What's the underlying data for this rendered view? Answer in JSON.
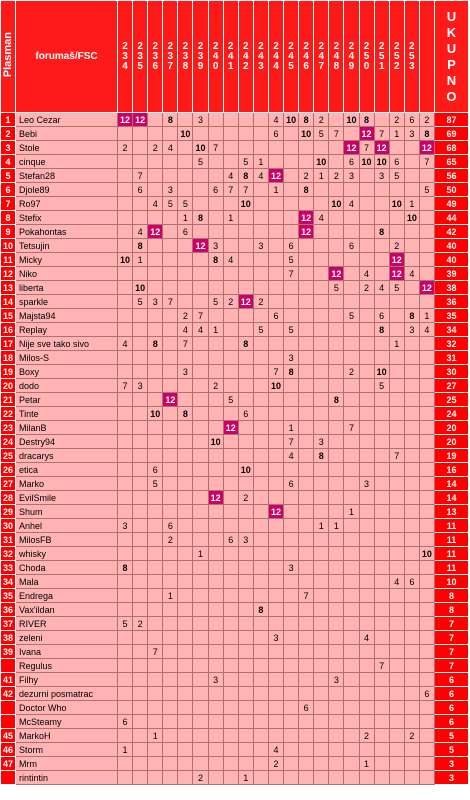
{
  "header": {
    "rank_label": "Plasman",
    "name_label": "forumaš/FSC",
    "episodes": [
      "234",
      "235",
      "236",
      "237",
      "238",
      "239",
      "240",
      "241",
      "242",
      "243",
      "244",
      "245",
      "246",
      "247",
      "248",
      "249",
      "250",
      "251",
      "252",
      "253"
    ],
    "total_label": "UKUPNO"
  },
  "rows": [
    {
      "rank": "1",
      "name": "Leo Cezar",
      "scores": [
        "12",
        "12",
        "",
        "8",
        "",
        "3",
        "",
        "",
        "",
        "",
        "4",
        "10",
        "8",
        "2",
        "",
        "10",
        "8",
        "",
        "2",
        "6"
      ],
      "extra": "2",
      "total": "87"
    },
    {
      "rank": "2",
      "name": "Bebi",
      "scores": [
        "",
        "",
        "",
        "",
        "10",
        "",
        "",
        "",
        "",
        "",
        "6",
        "",
        "10",
        "5",
        "7",
        "",
        "12",
        "7",
        "1",
        "3"
      ],
      "extra": "8",
      "total": "69"
    },
    {
      "rank": "3",
      "name": "Stole",
      "scores": [
        "2",
        "",
        "2",
        "4",
        "",
        "10",
        "7",
        "",
        "",
        "",
        "",
        "",
        "",
        "",
        "",
        "12",
        "7",
        "12",
        "",
        ""
      ],
      "extra": "12",
      "total": "68"
    },
    {
      "rank": "4",
      "name": "cinque",
      "scores": [
        "",
        "",
        "",
        "",
        "",
        "5",
        "",
        "",
        "5",
        "1",
        "",
        "",
        "",
        "10",
        "",
        "6",
        "10",
        "10",
        "6",
        ""
      ],
      "extra": "7",
      "total": "65"
    },
    {
      "rank": "5",
      "name": "Stefan28",
      "scores": [
        "",
        "7",
        "",
        "",
        "",
        "",
        "",
        "4",
        "8",
        "4",
        "12",
        "",
        "2",
        "1",
        "2",
        "3",
        "",
        "3",
        "5",
        ""
      ],
      "extra": "",
      "total": "56"
    },
    {
      "rank": "6",
      "name": "Djole89",
      "scores": [
        "",
        "6",
        "",
        "3",
        "",
        "",
        "6",
        "7",
        "7",
        "",
        "1",
        "",
        "8",
        "",
        "",
        "",
        "",
        "",
        "",
        ""
      ],
      "extra": "5",
      "total": "50"
    },
    {
      "rank": "7",
      "name": "Ro97",
      "scores": [
        "",
        "",
        "4",
        "5",
        "5",
        "",
        "",
        "",
        "10",
        "",
        "",
        "",
        "",
        "",
        "10",
        "4",
        "",
        "",
        "10",
        "1"
      ],
      "extra": "",
      "total": "49"
    },
    {
      "rank": "8",
      "name": "Stefix",
      "scores": [
        "",
        "",
        "",
        "",
        "1",
        "8",
        "",
        "1",
        "",
        "",
        "",
        "",
        "12",
        "4",
        "",
        "",
        "",
        "",
        "",
        "10"
      ],
      "extra": "",
      "total": "44"
    },
    {
      "rank": "9",
      "name": "Pokahontas",
      "scores": [
        "",
        "4",
        "12",
        "",
        "6",
        "",
        "",
        "",
        "",
        "",
        "",
        "",
        "12",
        "",
        "",
        "",
        "",
        "8",
        "",
        ""
      ],
      "extra": "",
      "total": "42"
    },
    {
      "rank": "10",
      "name": "Tetsujin",
      "scores": [
        "",
        "8",
        "",
        "",
        "",
        "12",
        "3",
        "",
        "",
        "3",
        "",
        "6",
        "",
        "",
        "",
        "6",
        "",
        "",
        "2",
        ""
      ],
      "extra": "",
      "total": "40"
    },
    {
      "rank": "11",
      "name": "Micky",
      "scores": [
        "10",
        "1",
        "",
        "",
        "",
        "",
        "8",
        "4",
        "",
        "",
        "",
        "5",
        "",
        "",
        "",
        "",
        "",
        "",
        "12",
        ""
      ],
      "extra": "",
      "total": "40"
    },
    {
      "rank": "12",
      "name": "Niko",
      "scores": [
        "",
        "",
        "",
        "",
        "",
        "",
        "",
        "",
        "",
        "",
        "",
        "7",
        "",
        "",
        "12",
        "",
        "4",
        "",
        "12",
        "4"
      ],
      "extra": "",
      "total": "39"
    },
    {
      "rank": "13",
      "name": "liberta",
      "scores": [
        "",
        "10",
        "",
        "",
        "",
        "",
        "",
        "",
        "",
        "",
        "",
        "",
        "",
        "",
        "5",
        "",
        "2",
        "4",
        "5",
        ""
      ],
      "extra": "12",
      "total": "38"
    },
    {
      "rank": "14",
      "name": "sparkle",
      "scores": [
        "",
        "5",
        "3",
        "7",
        "",
        "",
        "5",
        "2",
        "12",
        "2",
        "",
        "",
        "",
        "",
        "",
        "",
        "",
        "",
        "",
        ""
      ],
      "extra": "",
      "total": "36"
    },
    {
      "rank": "15",
      "name": "Majsta94",
      "scores": [
        "",
        "",
        "",
        "",
        "2",
        "7",
        "",
        "",
        "",
        "",
        "6",
        "",
        "",
        "",
        "",
        "5",
        "",
        "6",
        "",
        "8"
      ],
      "extra": "1",
      "total": "35"
    },
    {
      "rank": "16",
      "name": "Replay",
      "scores": [
        "",
        "",
        "",
        "",
        "4",
        "4",
        "1",
        "",
        "",
        "5",
        "",
        "5",
        "",
        "",
        "",
        "",
        "",
        "8",
        "",
        "3"
      ],
      "extra": "4",
      "total": "34"
    },
    {
      "rank": "17",
      "name": "Nije sve tako sivo",
      "scores": [
        "4",
        "",
        "8",
        "",
        "7",
        "",
        "",
        "",
        "8",
        "",
        "",
        "",
        "",
        "",
        "",
        "",
        "",
        "",
        "1",
        ""
      ],
      "extra": "",
      "total": "32"
    },
    {
      "rank": "18",
      "name": "Milos-S",
      "scores": [
        "",
        "",
        "",
        "",
        "",
        "",
        "",
        "",
        "",
        "",
        "",
        "3",
        "",
        "",
        "",
        "",
        "",
        "",
        "",
        ""
      ],
      "extra": "",
      "total": "31"
    },
    {
      "rank": "19",
      "name": "Boxy",
      "scores": [
        "",
        "",
        "",
        "",
        "3",
        "",
        "",
        "",
        "",
        "",
        "7",
        "8",
        "",
        "",
        "",
        "2",
        "",
        "10",
        "",
        ""
      ],
      "extra": "",
      "total": "30"
    },
    {
      "rank": "20",
      "name": "dodo",
      "scores": [
        "7",
        "3",
        "",
        "",
        "",
        "",
        "2",
        "",
        "",
        "",
        "10",
        "",
        "",
        "",
        "",
        "",
        "",
        "5",
        "",
        ""
      ],
      "extra": "",
      "total": "27"
    },
    {
      "rank": "21",
      "name": "Petar",
      "scores": [
        "",
        "",
        "",
        "12",
        "",
        "",
        "",
        "5",
        "",
        "",
        "",
        "",
        "",
        "",
        "8",
        "",
        "",
        "",
        "",
        ""
      ],
      "extra": "",
      "total": "25"
    },
    {
      "rank": "22",
      "name": "Tinte",
      "scores": [
        "",
        "",
        "10",
        "",
        "8",
        "",
        "",
        "",
        "6",
        "",
        "",
        "",
        "",
        "",
        "",
        "",
        "",
        "",
        "",
        ""
      ],
      "extra": "",
      "total": "24"
    },
    {
      "rank": "23",
      "name": "MilanB",
      "scores": [
        "",
        "",
        "",
        "",
        "",
        "",
        "",
        "12",
        "",
        "",
        "",
        "1",
        "",
        "",
        "",
        "7",
        "",
        "",
        "",
        ""
      ],
      "extra": "",
      "total": "20"
    },
    {
      "rank": "24",
      "name": "Destry94",
      "scores": [
        "",
        "",
        "",
        "",
        "",
        "",
        "10",
        "",
        "",
        "",
        "",
        "7",
        "",
        "3",
        "",
        "",
        "",
        "",
        "",
        ""
      ],
      "extra": "",
      "total": "20"
    },
    {
      "rank": "25",
      "name": "dracarys",
      "scores": [
        "",
        "",
        "",
        "",
        "",
        "",
        "",
        "",
        "",
        "",
        "",
        "4",
        "",
        "8",
        "",
        "",
        "",
        "",
        "7",
        ""
      ],
      "extra": "",
      "total": "19"
    },
    {
      "rank": "26",
      "name": "etica",
      "scores": [
        "",
        "",
        "6",
        "",
        "",
        "",
        "",
        "",
        "10",
        "",
        "",
        "",
        "",
        "",
        "",
        "",
        "",
        "",
        "",
        ""
      ],
      "extra": "",
      "total": "16"
    },
    {
      "rank": "27",
      "name": "Marko",
      "scores": [
        "",
        "",
        "5",
        "",
        "",
        "",
        "",
        "",
        "",
        "",
        "",
        "6",
        "",
        "",
        "",
        "",
        "3",
        "",
        "",
        ""
      ],
      "extra": "",
      "total": "14"
    },
    {
      "rank": "28",
      "name": "EvilSmile",
      "scores": [
        "",
        "",
        "",
        "",
        "",
        "",
        "12",
        "",
        "2",
        "",
        "",
        "",
        "",
        "",
        "",
        "",
        "",
        "",
        "",
        ""
      ],
      "extra": "",
      "total": "14"
    },
    {
      "rank": "29",
      "name": "Shum",
      "scores": [
        "",
        "",
        "",
        "",
        "",
        "",
        "",
        "",
        "",
        "",
        "12",
        "",
        "",
        "",
        "",
        "1",
        "",
        "",
        "",
        ""
      ],
      "extra": "",
      "total": "13"
    },
    {
      "rank": "30",
      "name": "Anhel",
      "scores": [
        "3",
        "",
        "",
        "6",
        "",
        "",
        "",
        "",
        "",
        "",
        "",
        "",
        "",
        "1",
        "1",
        "",
        "",
        "",
        "",
        ""
      ],
      "extra": "",
      "total": "11"
    },
    {
      "rank": "31",
      "name": "MilosFB",
      "scores": [
        "",
        "",
        "",
        "2",
        "",
        "",
        "",
        "6",
        "3",
        "",
        "",
        "",
        "",
        "",
        "",
        "",
        "",
        "",
        "",
        ""
      ],
      "extra": "",
      "total": "11"
    },
    {
      "rank": "32",
      "name": "whisky",
      "scores": [
        "",
        "",
        "",
        "",
        "",
        "1",
        "",
        "",
        "",
        "",
        "",
        "",
        "",
        "",
        "",
        "",
        "",
        "",
        "",
        ""
      ],
      "extra": "10",
      "total": "11"
    },
    {
      "rank": "33",
      "name": "Choda",
      "scores": [
        "8",
        "",
        "",
        "",
        "",
        "",
        "",
        "",
        "",
        "",
        "",
        "3",
        "",
        "",
        "",
        "",
        "",
        "",
        "",
        ""
      ],
      "extra": "",
      "total": "11"
    },
    {
      "rank": "34",
      "name": "Mala",
      "scores": [
        "",
        "",
        "",
        "",
        "",
        "",
        "",
        "",
        "",
        "",
        "",
        "",
        "",
        "",
        "",
        "",
        "",
        "",
        "4",
        "6"
      ],
      "extra": "",
      "total": "10"
    },
    {
      "rank": "35",
      "name": "Endrega",
      "scores": [
        "",
        "",
        "",
        "1",
        "",
        "",
        "",
        "",
        "",
        "",
        "",
        "",
        "7",
        "",
        "",
        "",
        "",
        "",
        "",
        ""
      ],
      "extra": "",
      "total": "8"
    },
    {
      "rank": "36",
      "name": "Vax'ildan",
      "scores": [
        "",
        "",
        "",
        "",
        "",
        "",
        "",
        "",
        "",
        "8",
        "",
        "",
        "",
        "",
        "",
        "",
        "",
        "",
        "",
        ""
      ],
      "extra": "",
      "total": "8"
    },
    {
      "rank": "37",
      "name": "RIVER",
      "scores": [
        "5",
        "2",
        "",
        "",
        "",
        "",
        "",
        "",
        "",
        "",
        "",
        "",
        "",
        "",
        "",
        "",
        "",
        "",
        "",
        ""
      ],
      "extra": "",
      "total": "7"
    },
    {
      "rank": "38",
      "name": "zeleni",
      "scores": [
        "",
        "",
        "",
        "",
        "",
        "",
        "",
        "",
        "",
        "",
        "3",
        "",
        "",
        "",
        "",
        "",
        "4",
        "",
        "",
        ""
      ],
      "extra": "",
      "total": "7"
    },
    {
      "rank": "39",
      "name": "Ivana",
      "scores": [
        "",
        "",
        "7",
        "",
        "",
        "",
        "",
        "",
        "",
        "",
        "",
        "",
        "",
        "",
        "",
        "",
        "",
        "",
        "",
        ""
      ],
      "extra": "",
      "total": "7"
    },
    {
      "rank": "",
      "name": "Regulus",
      "scores": [
        "",
        "",
        "",
        "",
        "",
        "",
        "",
        "",
        "",
        "",
        "",
        "",
        "",
        "",
        "",
        "",
        "",
        "7",
        "",
        ""
      ],
      "extra": "",
      "total": "7"
    },
    {
      "rank": "41",
      "name": "Filhy",
      "scores": [
        "",
        "",
        "",
        "",
        "",
        "",
        "3",
        "",
        "",
        "",
        "",
        "",
        "",
        "",
        "3",
        "",
        "",
        "",
        "",
        ""
      ],
      "extra": "",
      "total": "6"
    },
    {
      "rank": "42",
      "name": "dezurni posmatrac",
      "scores": [
        "",
        "",
        "",
        "",
        "",
        "",
        "",
        "",
        "",
        "",
        "",
        "",
        "",
        "",
        "",
        "",
        "",
        "",
        "",
        ""
      ],
      "extra": "6",
      "total": "6"
    },
    {
      "rank": "",
      "name": "Doctor Who",
      "scores": [
        "",
        "",
        "",
        "",
        "",
        "",
        "",
        "",
        "",
        "",
        "",
        "",
        "6",
        "",
        "",
        "",
        "",
        "",
        "",
        ""
      ],
      "extra": "",
      "total": "6"
    },
    {
      "rank": "",
      "name": "McSteamy",
      "scores": [
        "6",
        "",
        "",
        "",
        "",
        "",
        "",
        "",
        "",
        "",
        "",
        "",
        "",
        "",
        "",
        "",
        "",
        "",
        "",
        ""
      ],
      "extra": "",
      "total": "6"
    },
    {
      "rank": "45",
      "name": "MarkoH",
      "scores": [
        "",
        "",
        "1",
        "",
        "",
        "",
        "",
        "",
        "",
        "",
        "",
        "",
        "",
        "",
        "",
        "",
        "2",
        "",
        "",
        "2"
      ],
      "extra": "",
      "total": "5"
    },
    {
      "rank": "46",
      "name": "Storm",
      "scores": [
        "1",
        "",
        "",
        "",
        "",
        "",
        "",
        "",
        "",
        "",
        "4",
        "",
        "",
        "",
        "",
        "",
        "",
        "",
        "",
        ""
      ],
      "extra": "",
      "total": "5"
    },
    {
      "rank": "47",
      "name": "Mrm",
      "scores": [
        "",
        "",
        "",
        "",
        "",
        "",
        "",
        "",
        "",
        "",
        "2",
        "",
        "",
        "",
        "",
        "",
        "1",
        "",
        "",
        ""
      ],
      "extra": "",
      "total": "3"
    },
    {
      "rank": "",
      "name": "rintintin",
      "scores": [
        "",
        "",
        "",
        "",
        "",
        "2",
        "",
        "",
        "1",
        "",
        "",
        "",
        "",
        "",
        "",
        "",
        "",
        "",
        "",
        ""
      ],
      "extra": "",
      "total": "3"
    }
  ]
}
